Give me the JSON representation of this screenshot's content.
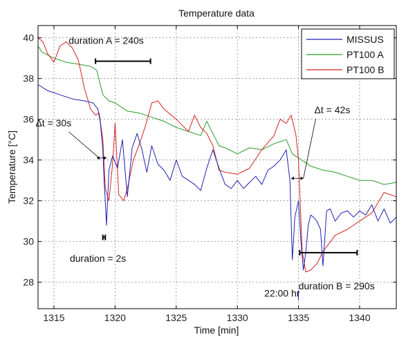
{
  "chart_data": {
    "type": "line",
    "title": "Temperature data",
    "xlabel": "Time [min]",
    "ylabel": "Temperature [°C]",
    "xlim": [
      1313.7,
      1343
    ],
    "ylim": [
      26.7,
      40.6
    ],
    "x_ticks": [
      1315,
      1320,
      1325,
      1330,
      1335,
      1340
    ],
    "y_ticks": [
      28,
      30,
      32,
      34,
      36,
      38,
      40
    ],
    "grid": true,
    "legend_position": "top-right",
    "colors": {
      "MISSUS": "#1f1fb4",
      "PT100 A": "#2a9a2a",
      "PT100 B": "#d42020"
    },
    "series": [
      {
        "name": "MISSUS",
        "x": [
          1313.7,
          1314.5,
          1315.5,
          1316.5,
          1317.5,
          1318.2,
          1318.6,
          1318.8,
          1319.0,
          1319.1,
          1319.2,
          1319.3,
          1319.5,
          1319.8,
          1320.2,
          1320.6,
          1321.0,
          1321.4,
          1321.8,
          1322.2,
          1322.6,
          1323.0,
          1323.5,
          1324.0,
          1324.5,
          1325.0,
          1325.5,
          1326.0,
          1326.5,
          1327.0,
          1327.5,
          1328.0,
          1328.5,
          1329.0,
          1329.5,
          1330.0,
          1330.5,
          1331.0,
          1331.5,
          1332.0,
          1332.5,
          1333.0,
          1333.5,
          1334.0,
          1334.3,
          1334.5,
          1334.7,
          1335.0,
          1335.2,
          1335.4,
          1335.6,
          1335.8,
          1336.0,
          1336.2,
          1336.5,
          1336.8,
          1337.0,
          1337.3,
          1337.6,
          1338.0,
          1338.5,
          1339.0,
          1339.5,
          1340.0,
          1340.5,
          1341.0,
          1341.5,
          1342.0,
          1342.5,
          1343.0
        ],
        "y": [
          37.7,
          37.4,
          37.2,
          37.0,
          36.9,
          36.8,
          36.5,
          35.8,
          34.5,
          33.0,
          32.0,
          30.8,
          33.5,
          34.2,
          33.6,
          35.0,
          32.2,
          34.6,
          35.3,
          34.5,
          33.4,
          34.7,
          33.8,
          33.5,
          33.0,
          34.0,
          33.2,
          33.0,
          32.8,
          32.5,
          33.6,
          34.5,
          33.6,
          32.8,
          32.6,
          33.0,
          32.6,
          32.9,
          33.2,
          32.8,
          33.5,
          33.7,
          34.0,
          34.5,
          33.0,
          29.1,
          31.2,
          32.0,
          30.0,
          28.6,
          29.5,
          30.8,
          31.3,
          31.2,
          31.0,
          30.6,
          28.8,
          31.5,
          31.6,
          31.0,
          31.4,
          31.5,
          31.2,
          31.5,
          31.3,
          31.8,
          31.0,
          31.6,
          30.9,
          31.2
        ]
      },
      {
        "name": "PT100 A",
        "x": [
          1313.7,
          1314.0,
          1315.0,
          1316.0,
          1317.0,
          1318.0,
          1318.5,
          1319.0,
          1319.5,
          1320.0,
          1321.0,
          1322.0,
          1323.0,
          1324.0,
          1325.0,
          1326.0,
          1327.0,
          1327.5,
          1328.0,
          1328.5,
          1329.0,
          1330.0,
          1331.0,
          1332.0,
          1333.0,
          1334.0,
          1334.5,
          1335.0,
          1335.5,
          1336.0,
          1337.0,
          1338.0,
          1339.0,
          1340.0,
          1341.0,
          1342.0,
          1343.0
        ],
        "y": [
          39.6,
          39.3,
          39.0,
          38.8,
          38.7,
          38.6,
          38.4,
          37.2,
          36.9,
          36.8,
          36.4,
          36.3,
          36.1,
          35.9,
          35.6,
          35.4,
          35.2,
          35.9,
          35.3,
          34.7,
          34.6,
          34.3,
          34.6,
          34.5,
          34.8,
          35.0,
          34.3,
          34.1,
          33.9,
          33.7,
          33.5,
          33.4,
          33.2,
          33.0,
          33.0,
          32.8,
          32.9
        ]
      },
      {
        "name": "PT100 B",
        "x": [
          1313.7,
          1314.1,
          1314.5,
          1315.0,
          1315.5,
          1316.0,
          1316.5,
          1317.0,
          1317.5,
          1318.0,
          1318.4,
          1318.7,
          1319.0,
          1319.2,
          1319.5,
          1319.8,
          1320.0,
          1320.3,
          1320.7,
          1321.0,
          1321.5,
          1322.0,
          1322.5,
          1323.0,
          1323.5,
          1324.0,
          1325.0,
          1326.0,
          1326.5,
          1327.0,
          1327.5,
          1328.0,
          1328.5,
          1329.0,
          1330.0,
          1331.0,
          1332.0,
          1333.0,
          1333.5,
          1334.0,
          1334.4,
          1334.8,
          1335.0,
          1335.3,
          1335.6,
          1336.0,
          1336.5,
          1337.0,
          1338.0,
          1339.0,
          1340.0,
          1341.0,
          1342.0,
          1343.0
        ],
        "y": [
          40.0,
          39.8,
          39.2,
          38.8,
          39.6,
          39.8,
          39.5,
          38.9,
          37.5,
          36.5,
          36.2,
          36.3,
          35.0,
          32.6,
          32.0,
          33.8,
          35.8,
          32.3,
          32.0,
          32.6,
          34.0,
          34.8,
          35.7,
          36.8,
          36.9,
          36.5,
          36.0,
          35.4,
          36.2,
          35.6,
          35.3,
          34.7,
          33.5,
          33.4,
          33.3,
          33.6,
          34.5,
          35.2,
          36.0,
          35.8,
          36.2,
          35.2,
          34.0,
          29.5,
          28.5,
          28.6,
          28.9,
          29.5,
          30.3,
          30.6,
          31.0,
          31.4,
          32.4,
          32.2
        ]
      }
    ],
    "annotations": {
      "durA": {
        "text": "duration  A = 240s",
        "x1": 1318.4,
        "x2": 1322.9,
        "y": 38.85,
        "tx": 1316.2,
        "ty": 39.7
      },
      "durB": {
        "text": "duration  B = 290s",
        "x1": 1335.1,
        "x2": 1339.8,
        "y": 29.45,
        "tx": 1335.0,
        "ty": 27.65
      },
      "dur2": {
        "text": "duration = 2s",
        "x1": 1319.0,
        "x2": 1319.2,
        "y": 30.2,
        "tx": 1316.3,
        "ty": 29.0
      },
      "dt30": {
        "text": "Δt = 30s",
        "tx": 1313.5,
        "ty": 35.65,
        "ax": 1318.7,
        "ay": 34.1,
        "bx1": 1318.5,
        "bx2": 1319.3,
        "by": 34.1
      },
      "dt42": {
        "text": "Δt = 42s",
        "tx": 1336.3,
        "ty": 36.3,
        "ax": 1335.4,
        "ay": 33.1,
        "bx1": 1334.4,
        "bx2": 1335.4,
        "by": 33.1
      },
      "time": {
        "text": "22:00 hr",
        "tx": 1332.2,
        "ty": 27.3,
        "x": 1335.0
      }
    }
  }
}
